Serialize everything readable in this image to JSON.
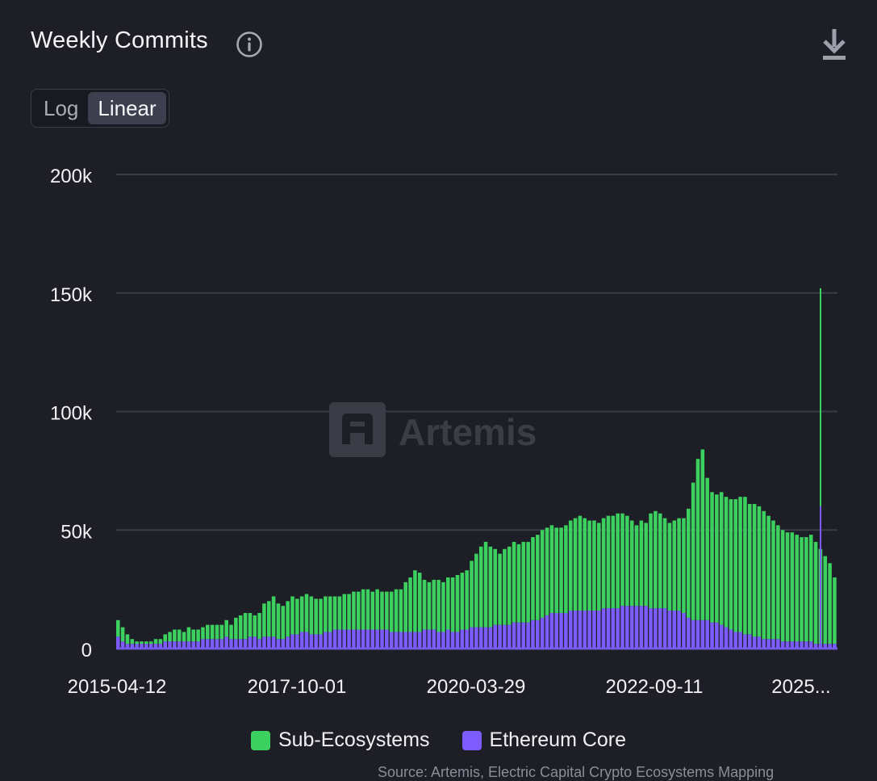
{
  "header": {
    "title": "Weekly Commits",
    "info_icon": "info-icon",
    "download_icon": "download-icon"
  },
  "scale_toggle": {
    "options": [
      "Log",
      "Linear"
    ],
    "selected": "Linear"
  },
  "watermark": "Artemis",
  "source_text": "Source: Artemis, Electric Capital Crypto Ecosystems Mapping",
  "colors": {
    "background": "#1d1e26",
    "sub_ecosystems": "#3cd15f",
    "ethereum_core": "#7c5cff",
    "grid": "#3a3c48"
  },
  "chart_data": {
    "type": "bar",
    "stacked": true,
    "title": "Weekly Commits",
    "xlabel": "",
    "ylabel": "",
    "ylim": [
      0,
      200000
    ],
    "y_ticks": [
      0,
      50000,
      100000,
      150000,
      200000
    ],
    "y_tick_labels": [
      "0",
      "50k",
      "100k",
      "150k",
      "200k"
    ],
    "x_tick_labels": [
      "2015-04-12",
      "2017-10-01",
      "2020-03-29",
      "2022-09-11",
      "2025..."
    ],
    "x_range": [
      "2015-04-12",
      "2025-08"
    ],
    "legend": [
      "Sub-Ecosystems",
      "Ethereum Core"
    ],
    "legend_position": "bottom-center",
    "grid": true,
    "series": [
      {
        "name": "Ethereum Core",
        "color": "#7c5cff",
        "note": "monthly approximate values (thousands of commits/week)",
        "values_k": [
          5,
          3,
          2,
          2,
          2,
          2,
          2,
          2,
          2,
          2,
          3,
          3,
          3,
          3,
          3,
          3,
          3,
          3,
          4,
          4,
          4,
          4,
          4,
          5,
          4,
          4,
          4,
          4,
          5,
          5,
          4,
          5,
          5,
          5,
          4,
          4,
          5,
          6,
          6,
          7,
          7,
          6,
          6,
          6,
          7,
          7,
          8,
          8,
          8,
          8,
          8,
          8,
          8,
          8,
          8,
          8,
          8,
          8,
          7,
          7,
          7,
          7,
          7,
          7,
          7,
          8,
          8,
          8,
          7,
          7,
          8,
          7,
          7,
          8,
          8,
          9,
          9,
          9,
          9,
          9,
          10,
          10,
          10,
          10,
          11,
          11,
          11,
          11,
          12,
          12,
          13,
          14,
          15,
          15,
          15,
          15,
          16,
          16,
          16,
          16,
          16,
          16,
          16,
          17,
          17,
          17,
          17,
          18,
          18,
          18,
          18,
          18,
          18,
          17,
          17,
          17,
          17,
          16,
          16,
          16,
          15,
          13,
          12,
          12,
          12,
          12,
          11,
          11,
          10,
          9,
          8,
          7,
          7,
          6,
          6,
          5,
          5,
          4,
          4,
          4,
          4,
          3,
          3,
          3,
          3,
          3,
          3,
          3,
          2,
          2,
          2,
          2,
          2
        ]
      },
      {
        "name": "Sub-Ecosystems",
        "color": "#3cd15f",
        "note": "monthly approximate values (thousands of commits/week)",
        "values_k": [
          7,
          6,
          4,
          2,
          1,
          1,
          1,
          1,
          2,
          2,
          3,
          4,
          5,
          5,
          4,
          6,
          5,
          5,
          5,
          6,
          6,
          6,
          6,
          7,
          6,
          9,
          10,
          11,
          10,
          9,
          11,
          14,
          15,
          17,
          15,
          14,
          15,
          16,
          15,
          15,
          16,
          16,
          15,
          15,
          15,
          15,
          14,
          14,
          15,
          15,
          16,
          16,
          17,
          17,
          16,
          17,
          16,
          16,
          17,
          18,
          18,
          21,
          23,
          26,
          25,
          21,
          20,
          21,
          22,
          21,
          22,
          23,
          24,
          24,
          25,
          28,
          31,
          34,
          36,
          34,
          32,
          30,
          32,
          33,
          34,
          33,
          34,
          34,
          35,
          36,
          37,
          37,
          37,
          36,
          36,
          37,
          38,
          39,
          40,
          39,
          38,
          38,
          37,
          38,
          39,
          39,
          40,
          39,
          38,
          36,
          34,
          36,
          35,
          40,
          41,
          40,
          38,
          37,
          38,
          39,
          40,
          46,
          58,
          68,
          72,
          60,
          55,
          54,
          56,
          55,
          55,
          56,
          57,
          58,
          55,
          56,
          55,
          54,
          52,
          50,
          48,
          47,
          46,
          46,
          45,
          44,
          44,
          45,
          43,
          40,
          37,
          34,
          28
        ]
      }
    ],
    "spike": {
      "date": "2025-06",
      "sub_ecosystems": 152000,
      "ethereum_core": 60000
    }
  }
}
